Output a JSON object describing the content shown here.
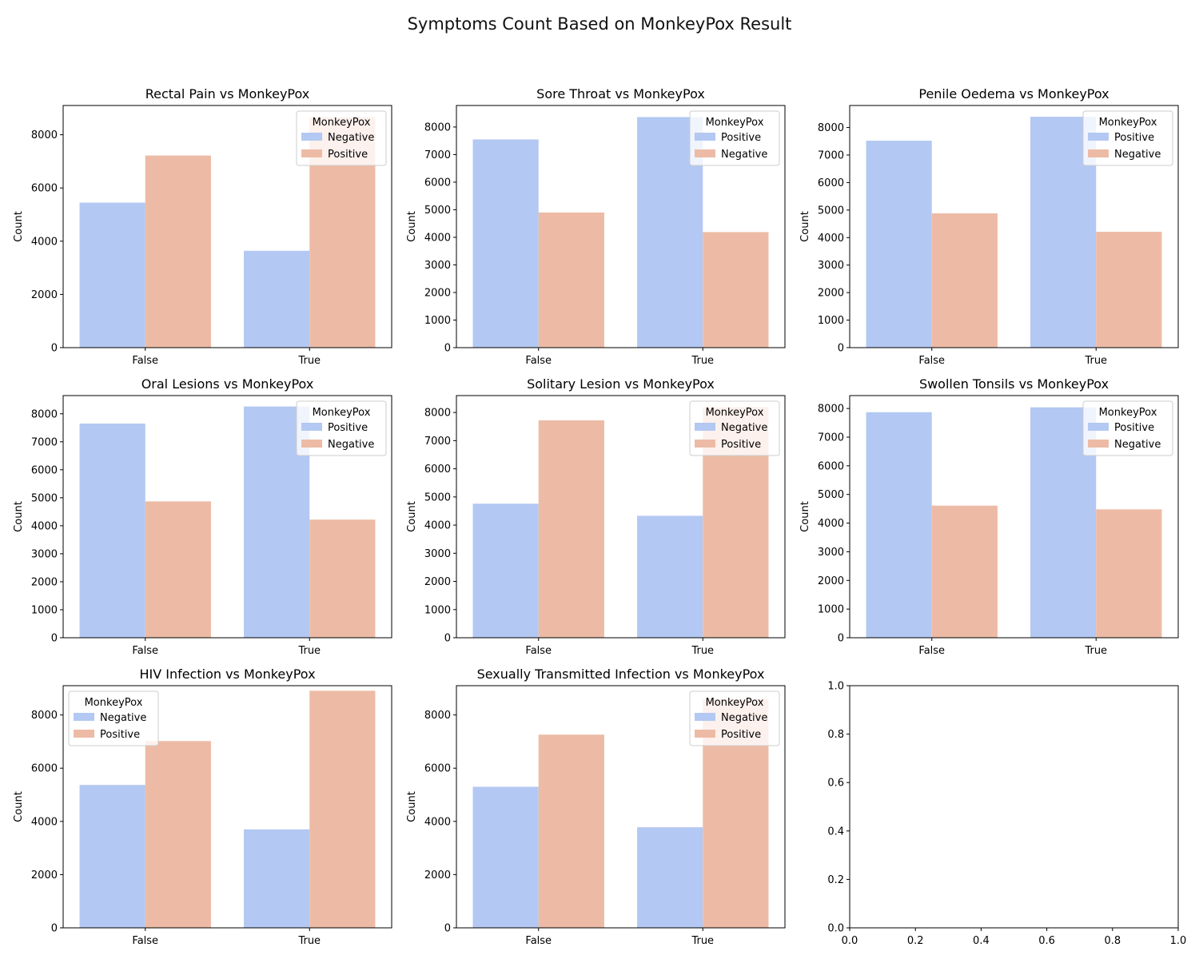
{
  "figure_title": "Symptoms Count Based on MonkeyPox Result",
  "colors": {
    "blue": "#b3c8f2",
    "orange": "#edbba5",
    "axis": "#000000"
  },
  "chart_data": [
    {
      "type": "bar",
      "title": "Rectal Pain vs MonkeyPox",
      "xlabel": "",
      "ylabel": "Count",
      "categories": [
        "False",
        "True"
      ],
      "ylim": [
        0,
        9100
      ],
      "yticks": [
        0,
        2000,
        4000,
        6000,
        8000
      ],
      "legend": {
        "title": "MonkeyPox",
        "position": "upper-right"
      },
      "series": [
        {
          "name": "Negative",
          "color": "blue",
          "values": [
            5450,
            3640
          ]
        },
        {
          "name": "Positive",
          "color": "orange",
          "values": [
            7220,
            8660
          ]
        }
      ]
    },
    {
      "type": "bar",
      "title": "Sore Throat vs MonkeyPox",
      "xlabel": "",
      "ylabel": "Count",
      "categories": [
        "False",
        "True"
      ],
      "ylim": [
        0,
        8780
      ],
      "yticks": [
        0,
        1000,
        2000,
        3000,
        4000,
        5000,
        6000,
        7000,
        8000
      ],
      "legend": {
        "title": "MonkeyPox",
        "position": "upper-right"
      },
      "series": [
        {
          "name": "Positive",
          "color": "blue",
          "values": [
            7550,
            8360
          ]
        },
        {
          "name": "Negative",
          "color": "orange",
          "values": [
            4900,
            4190
          ]
        }
      ]
    },
    {
      "type": "bar",
      "title": "Penile Oedema vs MonkeyPox",
      "xlabel": "",
      "ylabel": "Count",
      "categories": [
        "False",
        "True"
      ],
      "ylim": [
        0,
        8800
      ],
      "yticks": [
        0,
        1000,
        2000,
        3000,
        4000,
        5000,
        6000,
        7000,
        8000
      ],
      "legend": {
        "title": "MonkeyPox",
        "position": "upper-right"
      },
      "series": [
        {
          "name": "Positive",
          "color": "blue",
          "values": [
            7520,
            8390
          ]
        },
        {
          "name": "Negative",
          "color": "orange",
          "values": [
            4880,
            4210
          ]
        }
      ]
    },
    {
      "type": "bar",
      "title": "Oral Lesions vs MonkeyPox",
      "xlabel": "",
      "ylabel": "Count",
      "categories": [
        "False",
        "True"
      ],
      "ylim": [
        0,
        8650
      ],
      "yticks": [
        0,
        1000,
        2000,
        3000,
        4000,
        5000,
        6000,
        7000,
        8000
      ],
      "legend": {
        "title": "MonkeyPox",
        "position": "upper-right"
      },
      "series": [
        {
          "name": "Positive",
          "color": "blue",
          "values": [
            7650,
            8260
          ]
        },
        {
          "name": "Negative",
          "color": "orange",
          "values": [
            4870,
            4220
          ]
        }
      ]
    },
    {
      "type": "bar",
      "title": "Solitary Lesion vs MonkeyPox",
      "xlabel": "",
      "ylabel": "Count",
      "categories": [
        "False",
        "True"
      ],
      "ylim": [
        0,
        8600
      ],
      "yticks": [
        0,
        1000,
        2000,
        3000,
        4000,
        5000,
        6000,
        7000,
        8000
      ],
      "legend": {
        "title": "MonkeyPox",
        "position": "upper-right"
      },
      "series": [
        {
          "name": "Negative",
          "color": "blue",
          "values": [
            4760,
            4330
          ]
        },
        {
          "name": "Positive",
          "color": "orange",
          "values": [
            7720,
            8190
          ]
        }
      ]
    },
    {
      "type": "bar",
      "title": "Swollen Tonsils vs MonkeyPox",
      "xlabel": "",
      "ylabel": "Count",
      "categories": [
        "False",
        "True"
      ],
      "ylim": [
        0,
        8450
      ],
      "yticks": [
        0,
        1000,
        2000,
        3000,
        4000,
        5000,
        6000,
        7000,
        8000
      ],
      "legend": {
        "title": "MonkeyPox",
        "position": "upper-right"
      },
      "series": [
        {
          "name": "Positive",
          "color": "blue",
          "values": [
            7870,
            8040
          ]
        },
        {
          "name": "Negative",
          "color": "orange",
          "values": [
            4610,
            4480
          ]
        }
      ]
    },
    {
      "type": "bar",
      "title": "HIV Infection vs MonkeyPox",
      "xlabel": "",
      "ylabel": "Count",
      "categories": [
        "False",
        "True"
      ],
      "ylim": [
        0,
        9100
      ],
      "yticks": [
        0,
        2000,
        4000,
        6000,
        8000
      ],
      "legend": {
        "title": "MonkeyPox",
        "position": "upper-left"
      },
      "series": [
        {
          "name": "Negative",
          "color": "blue",
          "values": [
            5370,
            3700
          ]
        },
        {
          "name": "Positive",
          "color": "orange",
          "values": [
            7020,
            8910
          ]
        }
      ]
    },
    {
      "type": "bar",
      "title": "Sexually Transmitted Infection vs MonkeyPox",
      "xlabel": "",
      "ylabel": "Count",
      "categories": [
        "False",
        "True"
      ],
      "ylim": [
        0,
        9100
      ],
      "yticks": [
        0,
        2000,
        4000,
        6000,
        8000
      ],
      "legend": {
        "title": "MonkeyPox",
        "position": "upper-right"
      },
      "series": [
        {
          "name": "Negative",
          "color": "blue",
          "values": [
            5300,
            3780
          ]
        },
        {
          "name": "Positive",
          "color": "orange",
          "values": [
            7260,
            8600
          ]
        }
      ]
    },
    {
      "type": "empty",
      "title": "",
      "xlim": [
        0,
        1
      ],
      "ylim": [
        0,
        1
      ],
      "xticks": [
        "0.0",
        "0.2",
        "0.4",
        "0.6",
        "0.8",
        "1.0"
      ],
      "yticks": [
        "0.0",
        "0.2",
        "0.4",
        "0.6",
        "0.8",
        "1.0"
      ]
    }
  ]
}
